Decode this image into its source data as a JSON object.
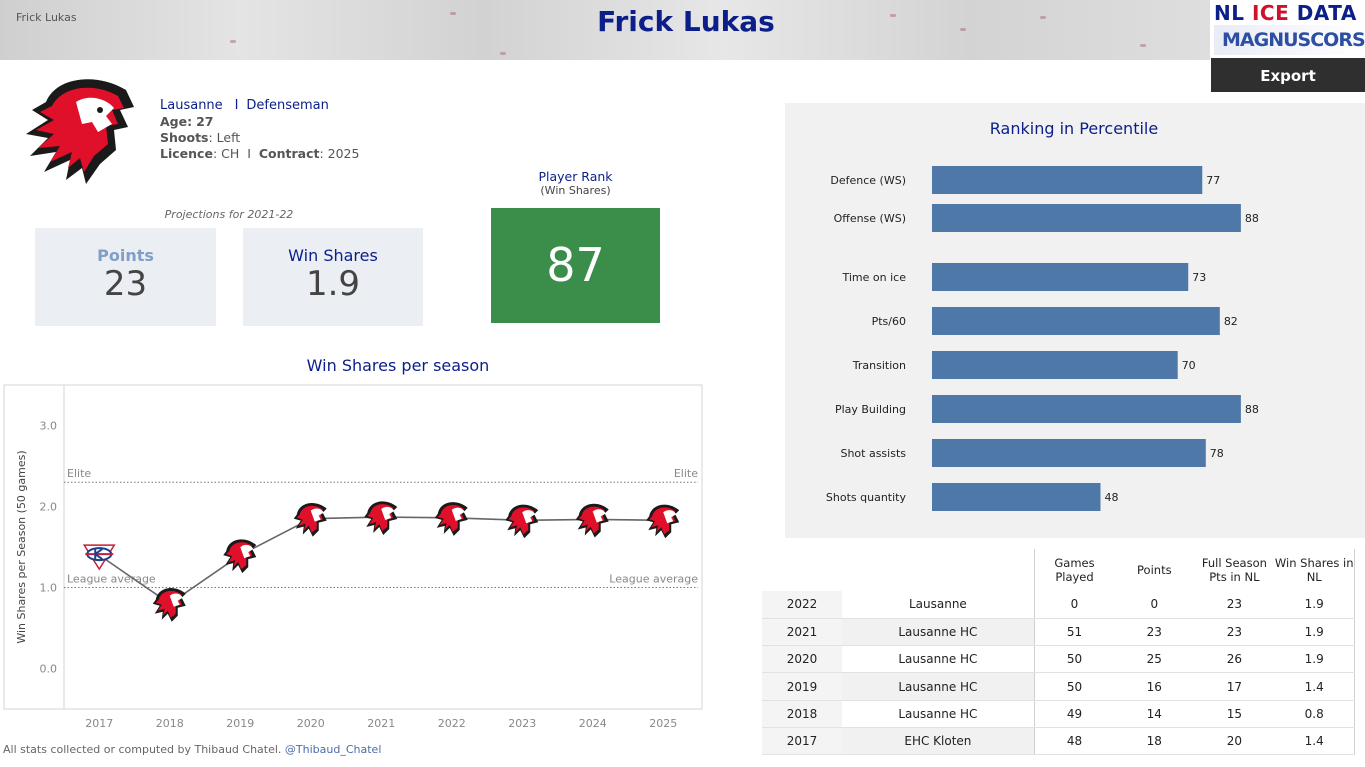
{
  "header": {
    "small_name": "Frick Lukas",
    "title": "Frick Lukas",
    "logo_line1_a": "NL ",
    "logo_line1_b": "ICE",
    "logo_line1_c": " DATA",
    "logo_line2": "MAGNUSCORSI",
    "export_label": "Export"
  },
  "player": {
    "team": "Lausanne",
    "separator": "I",
    "position": "Defenseman",
    "age_label": "Age:",
    "age": "27",
    "shoots_label": "Shoots",
    "shoots": ": Left",
    "licence_label": "Licence",
    "licence": ": CH",
    "contract_sep": "I",
    "contract_label": "Contract",
    "contract": ": 2025",
    "team_logo_icon": "lion-head-icon"
  },
  "projections": {
    "label": "Projections for 2021-22",
    "points_label": "Points",
    "points_value": "23",
    "ws_label": "Win Shares",
    "ws_value": "1.9"
  },
  "rank": {
    "title": "Player Rank",
    "subtitle": "(Win Shares)",
    "value": "87",
    "color": "#3a8e4a"
  },
  "ws_chart": {
    "title": "Win Shares per season",
    "ylabel": "Win Shares per Season (50 games)",
    "elite_label": "Elite",
    "avg_label": "League average",
    "elite_value": 2.3,
    "avg_value": 1.0,
    "ylim": [
      -0.5,
      3.5
    ],
    "yticks": [
      "0.0",
      "1.0",
      "2.0",
      "3.0"
    ]
  },
  "ranking": {
    "title": "Ranking in Percentile",
    "bar_color": "#4e78a8"
  },
  "table": {
    "headers": [
      "Games Played",
      "Points",
      "Full Season Pts in NL",
      "Win Shares in NL"
    ],
    "rows": [
      {
        "year": "2022",
        "team": "Lausanne",
        "gp": "0",
        "pts": "0",
        "full": "23",
        "ws": "1.9"
      },
      {
        "year": "2021",
        "team": "Lausanne HC",
        "gp": "51",
        "pts": "23",
        "full": "23",
        "ws": "1.9"
      },
      {
        "year": "2020",
        "team": "Lausanne HC",
        "gp": "50",
        "pts": "25",
        "full": "26",
        "ws": "1.9"
      },
      {
        "year": "2019",
        "team": "Lausanne HC",
        "gp": "50",
        "pts": "16",
        "full": "17",
        "ws": "1.4"
      },
      {
        "year": "2018",
        "team": "Lausanne HC",
        "gp": "49",
        "pts": "14",
        "full": "15",
        "ws": "0.8"
      },
      {
        "year": "2017",
        "team": "EHC Kloten",
        "gp": "48",
        "pts": "18",
        "full": "20",
        "ws": "1.4"
      }
    ]
  },
  "footer": {
    "text": "All stats collected or computed by Thibaud Chatel.",
    "handle": "@Thibaud_Chatel"
  },
  "chart_data": [
    {
      "type": "line",
      "title": "Win Shares per season",
      "xlabel": "",
      "ylabel": "Win Shares per Season (50 games)",
      "x": [
        "2017",
        "2018",
        "2019",
        "2020",
        "2021",
        "2022",
        "2023",
        "2024",
        "2025"
      ],
      "values": [
        1.4,
        0.8,
        1.4,
        1.85,
        1.87,
        1.86,
        1.83,
        1.84,
        1.83
      ],
      "marker_icons": [
        "kloten-logo-icon",
        "lion-head-icon",
        "lion-head-icon",
        "lion-head-icon",
        "lion-head-icon",
        "lion-head-icon",
        "lion-head-icon",
        "lion-head-icon",
        "lion-head-icon"
      ],
      "reference_lines": [
        {
          "label": "Elite",
          "value": 2.3
        },
        {
          "label": "League average",
          "value": 1.0
        }
      ],
      "ylim": [
        -0.5,
        3.5
      ],
      "grid": false
    },
    {
      "type": "bar",
      "title": "Ranking in Percentile",
      "orientation": "horizontal",
      "categories": [
        "Defence (WS)",
        "Offense (WS)",
        "Time on ice",
        "Pts/60",
        "Transition",
        "Play Building",
        "Shot assists",
        "Shots quantity"
      ],
      "values": [
        77,
        88,
        73,
        82,
        70,
        88,
        78,
        48
      ],
      "xlim": [
        0,
        100
      ],
      "grid": false
    }
  ]
}
